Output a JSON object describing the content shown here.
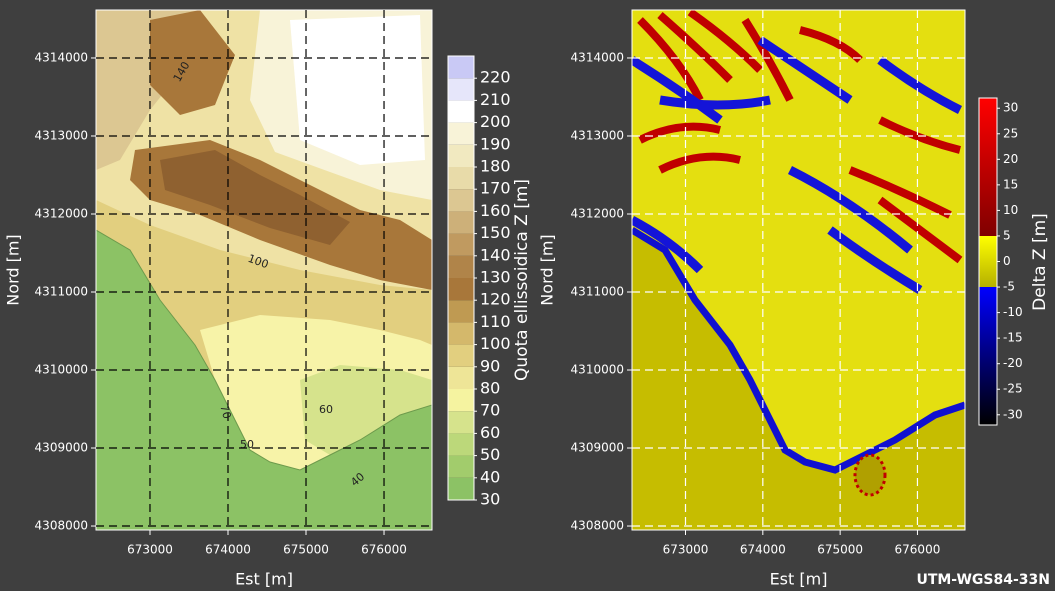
{
  "panels": [
    {
      "xlabel": "Est [m]",
      "ylabel": "Nord [m]",
      "xlim": [
        672308,
        676615
      ],
      "ylim": [
        4307949,
        4314615
      ],
      "xticks": [
        673000,
        674000,
        675000,
        676000
      ],
      "yticks": [
        4308000,
        4309000,
        4310000,
        4311000,
        4312000,
        4313000,
        4314000
      ],
      "grid": true,
      "grid_color": "#000000",
      "colorbar": {
        "label": "Quota ellissoidica Z [m]",
        "clim": [
          30,
          230
        ],
        "ticks": [
          30,
          40,
          50,
          60,
          70,
          80,
          90,
          100,
          110,
          120,
          130,
          140,
          150,
          160,
          170,
          180,
          190,
          200,
          210,
          220
        ],
        "colors": [
          "#8cc265",
          "#a2cc6c",
          "#bcd87a",
          "#d6e38c",
          "#f5f3a0",
          "#eee597",
          "#e2cf7f",
          "#d4b86b",
          "#bf9a52",
          "#a8773a",
          "#b08449",
          "#c09a60",
          "#cdb079",
          "#dcc792",
          "#e8dba9",
          "#f1e9c0",
          "#f8f3d8",
          "#ffffff",
          "#e6e6fa",
          "#c9c9f5"
        ]
      },
      "contour_labels": [
        "140",
        "100",
        "70",
        "60",
        "50",
        "40"
      ]
    },
    {
      "xlabel": "Est [m]",
      "ylabel": "Nord [m]",
      "xlim": [
        672308,
        676615
      ],
      "ylim": [
        4307949,
        4314615
      ],
      "xticks": [
        673000,
        674000,
        675000,
        676000
      ],
      "yticks": [
        4308000,
        4309000,
        4310000,
        4311000,
        4312000,
        4313000,
        4314000
      ],
      "grid": true,
      "grid_color": "#ffffff",
      "colorbar": {
        "label": "Delta Z [m]",
        "clim": [
          -32,
          32
        ],
        "ticks": [
          -30,
          -25,
          -20,
          -15,
          -10,
          -5,
          0,
          5,
          10,
          15,
          20,
          25,
          30
        ],
        "stops": [
          {
            "value": -32,
            "color": "#000000"
          },
          {
            "value": -20,
            "color": "#00006e"
          },
          {
            "value": -5,
            "color": "#0000ff"
          },
          {
            "value": -5,
            "color": "#b5b000"
          },
          {
            "value": 5,
            "color": "#ffff00"
          },
          {
            "value": 5,
            "color": "#800000"
          },
          {
            "value": 32,
            "color": "#ff0000"
          }
        ]
      }
    }
  ],
  "footer": "UTM-WGS84-33N"
}
